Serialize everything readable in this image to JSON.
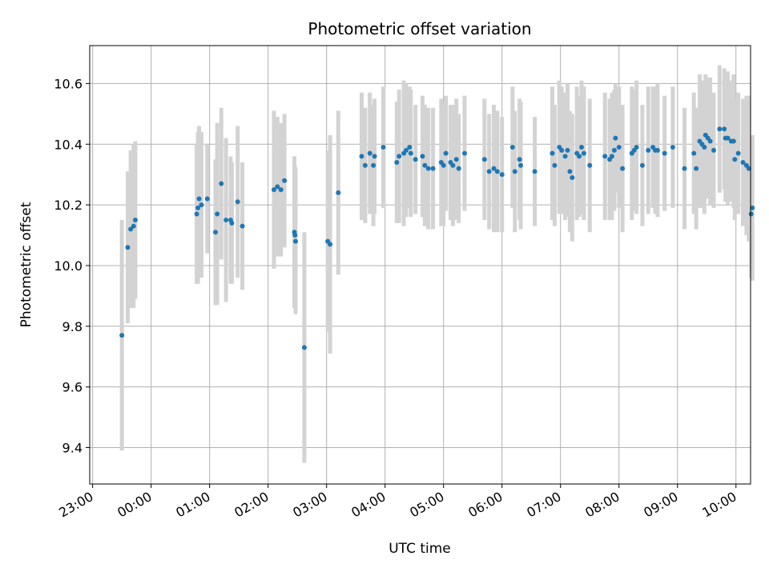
{
  "chart_data": {
    "type": "scatter",
    "title": "Photometric offset variation",
    "xlabel": "UTC time",
    "ylabel": "Photometric offset",
    "ylim": [
      9.28,
      10.725
    ],
    "xlim_hours": [
      -0.05,
      11.25
    ],
    "yticks": [
      9.4,
      9.6,
      9.8,
      10.0,
      10.2,
      10.4,
      10.6
    ],
    "xticks": [
      {
        "label": "23:00",
        "t": 0
      },
      {
        "label": "00:00",
        "t": 1
      },
      {
        "label": "01:00",
        "t": 2
      },
      {
        "label": "02:00",
        "t": 3
      },
      {
        "label": "03:00",
        "t": 4
      },
      {
        "label": "04:00",
        "t": 5
      },
      {
        "label": "05:00",
        "t": 6
      },
      {
        "label": "06:00",
        "t": 7
      },
      {
        "label": "07:00",
        "t": 8
      },
      {
        "label": "08:00",
        "t": 9
      },
      {
        "label": "09:00",
        "t": 10
      },
      {
        "label": "10:00",
        "t": 11
      }
    ],
    "grid": true,
    "colors": {
      "point": "#1f77b4",
      "errorbar": "#d3d3d3",
      "grid": "#b0b0b0"
    },
    "points": [
      [
        0.5,
        9.77,
        0.38
      ],
      [
        0.6,
        10.06,
        0.25
      ],
      [
        0.65,
        10.12,
        0.26
      ],
      [
        0.7,
        10.13,
        0.27
      ],
      [
        0.73,
        10.15,
        0.26
      ],
      [
        1.78,
        10.17,
        0.23
      ],
      [
        1.8,
        10.19,
        0.25
      ],
      [
        1.82,
        10.22,
        0.24
      ],
      [
        1.86,
        10.2,
        0.24
      ],
      [
        1.96,
        10.22,
        0.18
      ],
      [
        2.1,
        10.11,
        0.24
      ],
      [
        2.13,
        10.17,
        0.3
      ],
      [
        2.2,
        10.27,
        0.25
      ],
      [
        2.28,
        10.15,
        0.27
      ],
      [
        2.36,
        10.15,
        0.21
      ],
      [
        2.38,
        10.14,
        0.2
      ],
      [
        2.48,
        10.21,
        0.25
      ],
      [
        2.56,
        10.13,
        0.21
      ],
      [
        3.1,
        10.25,
        0.26
      ],
      [
        3.16,
        10.26,
        0.23
      ],
      [
        3.22,
        10.25,
        0.22
      ],
      [
        3.28,
        10.28,
        0.22
      ],
      [
        3.45,
        10.11,
        0.25
      ],
      [
        3.46,
        10.1,
        0.23
      ],
      [
        3.47,
        10.08,
        0.24
      ],
      [
        3.62,
        9.73,
        0.38
      ],
      [
        4.02,
        10.08,
        0.3
      ],
      [
        4.06,
        10.07,
        0.36
      ],
      [
        4.2,
        10.24,
        0.27
      ],
      [
        4.6,
        10.36,
        0.21
      ],
      [
        4.66,
        10.33,
        0.19
      ],
      [
        4.74,
        10.37,
        0.2
      ],
      [
        4.8,
        10.33,
        0.2
      ],
      [
        4.82,
        10.36,
        0.19
      ],
      [
        4.97,
        10.39,
        0.2
      ],
      [
        5.2,
        10.34,
        0.2
      ],
      [
        5.24,
        10.36,
        0.22
      ],
      [
        5.32,
        10.37,
        0.24
      ],
      [
        5.36,
        10.38,
        0.22
      ],
      [
        5.42,
        10.39,
        0.2
      ],
      [
        5.44,
        10.37,
        0.21
      ],
      [
        5.52,
        10.35,
        0.18
      ],
      [
        5.64,
        10.36,
        0.2
      ],
      [
        5.68,
        10.33,
        0.2
      ],
      [
        5.74,
        10.32,
        0.2
      ],
      [
        5.82,
        10.32,
        0.2
      ],
      [
        5.96,
        10.34,
        0.21
      ],
      [
        6.0,
        10.33,
        0.2
      ],
      [
        6.04,
        10.37,
        0.19
      ],
      [
        6.12,
        10.34,
        0.19
      ],
      [
        6.16,
        10.33,
        0.2
      ],
      [
        6.22,
        10.35,
        0.2
      ],
      [
        6.26,
        10.32,
        0.18
      ],
      [
        6.36,
        10.37,
        0.19
      ],
      [
        6.7,
        10.35,
        0.2
      ],
      [
        6.78,
        10.31,
        0.19
      ],
      [
        6.86,
        10.32,
        0.21
      ],
      [
        6.92,
        10.31,
        0.2
      ],
      [
        7.0,
        10.3,
        0.19
      ],
      [
        7.18,
        10.39,
        0.2
      ],
      [
        7.22,
        10.31,
        0.2
      ],
      [
        7.3,
        10.35,
        0.2
      ],
      [
        7.32,
        10.33,
        0.21
      ],
      [
        7.56,
        10.31,
        0.18
      ],
      [
        7.86,
        10.37,
        0.22
      ],
      [
        7.9,
        10.33,
        0.2
      ],
      [
        7.98,
        10.39,
        0.22
      ],
      [
        8.02,
        10.38,
        0.21
      ],
      [
        8.08,
        10.36,
        0.21
      ],
      [
        8.12,
        10.38,
        0.22
      ],
      [
        8.16,
        10.31,
        0.2
      ],
      [
        8.2,
        10.29,
        0.21
      ],
      [
        8.28,
        10.37,
        0.22
      ],
      [
        8.32,
        10.36,
        0.2
      ],
      [
        8.36,
        10.39,
        0.22
      ],
      [
        8.4,
        10.37,
        0.22
      ],
      [
        8.5,
        10.33,
        0.22
      ],
      [
        8.76,
        10.36,
        0.21
      ],
      [
        8.84,
        10.35,
        0.2
      ],
      [
        8.88,
        10.36,
        0.21
      ],
      [
        8.92,
        10.38,
        0.2
      ],
      [
        8.94,
        10.42,
        0.18
      ],
      [
        9.0,
        10.39,
        0.2
      ],
      [
        9.06,
        10.32,
        0.21
      ],
      [
        9.22,
        10.37,
        0.22
      ],
      [
        9.26,
        10.38,
        0.2
      ],
      [
        9.3,
        10.39,
        0.22
      ],
      [
        9.4,
        10.33,
        0.2
      ],
      [
        9.5,
        10.38,
        0.21
      ],
      [
        9.58,
        10.39,
        0.2
      ],
      [
        9.62,
        10.38,
        0.21
      ],
      [
        9.66,
        10.38,
        0.22
      ],
      [
        9.78,
        10.37,
        0.19
      ],
      [
        9.92,
        10.39,
        0.2
      ],
      [
        10.12,
        10.32,
        0.2
      ],
      [
        10.28,
        10.37,
        0.2
      ],
      [
        10.32,
        10.32,
        0.2
      ],
      [
        10.38,
        10.41,
        0.22
      ],
      [
        10.42,
        10.4,
        0.21
      ],
      [
        10.46,
        10.39,
        0.22
      ],
      [
        10.48,
        10.43,
        0.2
      ],
      [
        10.52,
        10.42,
        0.2
      ],
      [
        10.56,
        10.41,
        0.21
      ],
      [
        10.62,
        10.38,
        0.19
      ],
      [
        10.72,
        10.45,
        0.21
      ],
      [
        10.8,
        10.45,
        0.2
      ],
      [
        10.82,
        10.42,
        0.21
      ],
      [
        10.86,
        10.42,
        0.22
      ],
      [
        10.92,
        10.41,
        0.2
      ],
      [
        10.96,
        10.41,
        0.22
      ],
      [
        10.98,
        10.35,
        0.2
      ],
      [
        11.04,
        10.37,
        0.2
      ],
      [
        11.12,
        10.34,
        0.21
      ],
      [
        11.18,
        10.33,
        0.23
      ],
      [
        11.22,
        10.32,
        0.24
      ],
      [
        11.26,
        10.17,
        0.21
      ],
      [
        11.28,
        10.19,
        0.24
      ]
    ]
  }
}
